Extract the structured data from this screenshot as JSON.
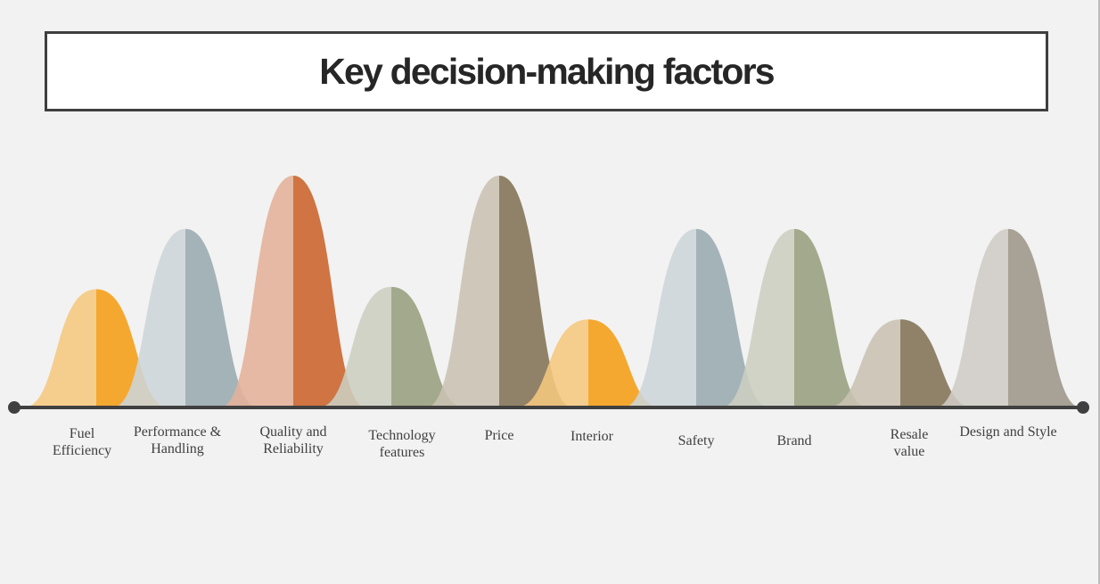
{
  "title": "Key decision-making factors",
  "factors": [
    {
      "label": [
        "Fuel",
        "Efficiency"
      ],
      "level": 0.51,
      "light": "#f5c77e",
      "dark": "#f5a21e"
    },
    {
      "label": [
        "Performance &",
        "Handling"
      ],
      "level": 0.77,
      "light": "#cdd5da",
      "dark": "#9daeb3"
    },
    {
      "label": [
        "Quality and",
        "Reliability"
      ],
      "level": 1.0,
      "light": "#e4b199",
      "dark": "#cc6933"
    },
    {
      "label": [
        "Technology",
        "features"
      ],
      "level": 0.52,
      "light": "#ccceC0",
      "dark": "#9ca383"
    },
    {
      "label": [
        "Price"
      ],
      "level": 1.0,
      "light": "#c9c2b2",
      "dark": "#88785c"
    },
    {
      "label": [
        "Interior"
      ],
      "level": 0.38,
      "light": "#f5c77e",
      "dark": "#f5a21e"
    },
    {
      "label": [
        "Safety"
      ],
      "level": 0.77,
      "light": "#cdd5da",
      "dark": "#9daeb3"
    },
    {
      "label": [
        "Brand"
      ],
      "level": 0.77,
      "light": "#ccceC0",
      "dark": "#9ca383"
    },
    {
      "label": [
        "Resale",
        "value"
      ],
      "level": 0.38,
      "light": "#c9c2b2",
      "dark": "#88785c"
    },
    {
      "label": [
        "Design and Style"
      ],
      "level": 0.77,
      "light": "#cfcbc5",
      "dark": "#a29a8d"
    }
  ],
  "colors": {
    "axis": "#404040",
    "title_border": "#3f3f3f"
  }
}
